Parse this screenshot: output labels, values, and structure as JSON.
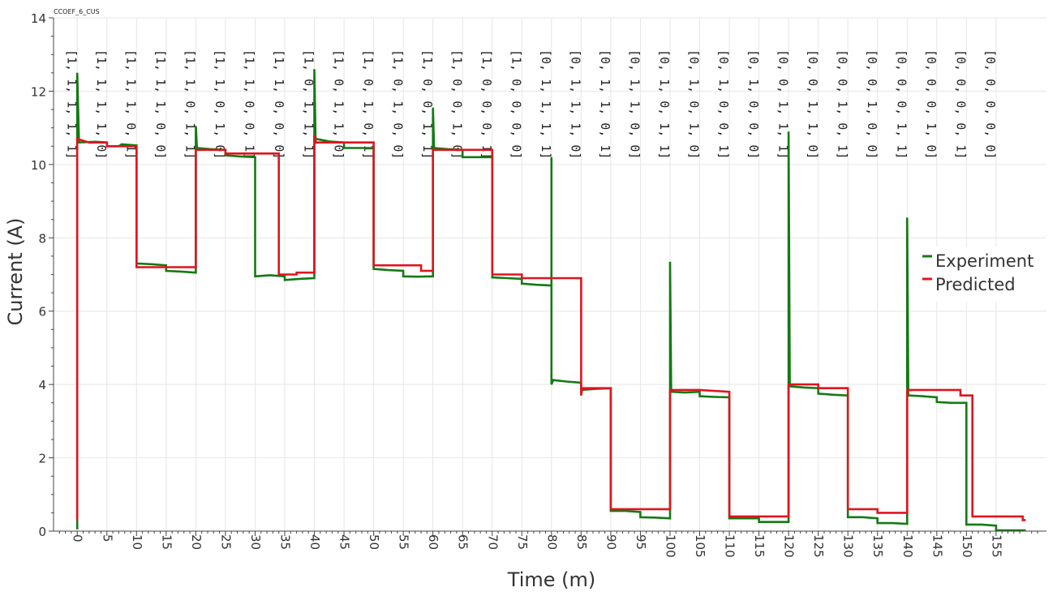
{
  "chart_data": {
    "type": "line",
    "title": "CCOEF_6_CUS",
    "xlabel": "Time (m)",
    "ylabel": "Current (A)",
    "xlim": [
      -4,
      163.5
    ],
    "ylim": [
      0,
      14
    ],
    "x_ticks": [
      0,
      5,
      10,
      15,
      20,
      25,
      30,
      35,
      40,
      45,
      50,
      55,
      60,
      65,
      70,
      75,
      80,
      85,
      90,
      95,
      100,
      105,
      110,
      115,
      120,
      125,
      130,
      135,
      140,
      145,
      150,
      155
    ],
    "x_tick_labels": [
      "0",
      "5",
      "10",
      "15",
      "20",
      "25",
      "30",
      "35",
      "40",
      "45",
      "50",
      "55",
      "60",
      "65",
      "70",
      "75",
      "80",
      "85",
      "90",
      "95",
      "100",
      "105",
      "110",
      "115",
      "120",
      "125",
      "130",
      "135",
      "140",
      "145",
      "150",
      "155"
    ],
    "y_ticks": [
      0,
      2,
      4,
      6,
      8,
      10,
      12,
      14
    ],
    "y_tick_labels": [
      "0",
      "2",
      "4",
      "6",
      "8",
      "10",
      "12",
      "14"
    ],
    "grid": true,
    "legend_position": "right",
    "state_labels": [
      {
        "x": -1,
        "text": "[1, 1, 1, 1, 1]"
      },
      {
        "x": 4,
        "text": "[1, 1, 1, 1, 0]"
      },
      {
        "x": 9,
        "text": "[1, 1, 1, 0, 1]"
      },
      {
        "x": 14,
        "text": "[1, 1, 1, 0, 0]"
      },
      {
        "x": 19,
        "text": "[1, 1, 0, 1, 1]"
      },
      {
        "x": 24,
        "text": "[1, 1, 0, 1, 0]"
      },
      {
        "x": 29,
        "text": "[1, 1, 0, 0, 1]"
      },
      {
        "x": 34,
        "text": "[1, 1, 0, 0, 0]"
      },
      {
        "x": 39,
        "text": "[1, 0, 1, 1, 1]"
      },
      {
        "x": 44,
        "text": "[1, 0, 1, 1, 0]"
      },
      {
        "x": 49,
        "text": "[1, 0, 1, 0, 1]"
      },
      {
        "x": 54,
        "text": "[1, 0, 1, 0, 0]"
      },
      {
        "x": 59,
        "text": "[1, 0, 0, 1, 1]"
      },
      {
        "x": 64,
        "text": "[1, 0, 0, 1, 0]"
      },
      {
        "x": 69,
        "text": "[1, 0, 0, 0, 1]"
      },
      {
        "x": 74,
        "text": "[1, 0, 0, 0, 0]"
      },
      {
        "x": 79,
        "text": "[0, 1, 1, 1, 1]"
      },
      {
        "x": 84,
        "text": "[0, 1, 1, 1, 0]"
      },
      {
        "x": 89,
        "text": "[0, 1, 1, 0, 1]"
      },
      {
        "x": 94,
        "text": "[0, 1, 1, 0, 0]"
      },
      {
        "x": 99,
        "text": "[0, 1, 0, 1, 1]"
      },
      {
        "x": 104,
        "text": "[0, 1, 0, 1, 0]"
      },
      {
        "x": 109,
        "text": "[0, 1, 0, 0, 1]"
      },
      {
        "x": 114,
        "text": "[0, 1, 0, 0, 0]"
      },
      {
        "x": 119,
        "text": "[0, 0, 1, 1, 1]"
      },
      {
        "x": 124,
        "text": "[0, 0, 1, 1, 0]"
      },
      {
        "x": 129,
        "text": "[0, 0, 1, 0, 1]"
      },
      {
        "x": 134,
        "text": "[0, 0, 1, 0, 0]"
      },
      {
        "x": 139,
        "text": "[0, 0, 0, 1, 1]"
      },
      {
        "x": 144,
        "text": "[0, 0, 0, 1, 0]"
      },
      {
        "x": 149,
        "text": "[0, 0, 0, 0, 1]"
      },
      {
        "x": 154,
        "text": "[0, 0, 0, 0, 0]"
      }
    ],
    "series": [
      {
        "name": "Experiment",
        "color": "#137a13",
        "points": [
          [
            0,
            0.05
          ],
          [
            0,
            12.5
          ],
          [
            0.3,
            10.6
          ],
          [
            3,
            10.62
          ],
          [
            5,
            10.6
          ],
          [
            5,
            10.5
          ],
          [
            7,
            10.5
          ],
          [
            7.5,
            10.55
          ],
          [
            10,
            10.52
          ],
          [
            10,
            7.3
          ],
          [
            12.5,
            7.28
          ],
          [
            15,
            7.25
          ],
          [
            15,
            7.1
          ],
          [
            17.5,
            7.08
          ],
          [
            20,
            7.05
          ],
          [
            20,
            11.05
          ],
          [
            20.2,
            10.45
          ],
          [
            22.5,
            10.42
          ],
          [
            25,
            10.4
          ],
          [
            25,
            10.25
          ],
          [
            27.5,
            10.22
          ],
          [
            30,
            10.2
          ],
          [
            30,
            6.95
          ],
          [
            32.5,
            6.98
          ],
          [
            35,
            6.95
          ],
          [
            35,
            6.85
          ],
          [
            37.5,
            6.88
          ],
          [
            40,
            6.9
          ],
          [
            40,
            12.6
          ],
          [
            40.2,
            10.7
          ],
          [
            42.5,
            10.63
          ],
          [
            45,
            10.6
          ],
          [
            45,
            10.45
          ],
          [
            47.5,
            10.45
          ],
          [
            50,
            10.45
          ],
          [
            50,
            7.15
          ],
          [
            52.5,
            7.12
          ],
          [
            55,
            7.1
          ],
          [
            55,
            6.95
          ],
          [
            57.5,
            6.94
          ],
          [
            60,
            6.95
          ],
          [
            60,
            11.55
          ],
          [
            60.2,
            10.45
          ],
          [
            62.5,
            10.42
          ],
          [
            65,
            10.4
          ],
          [
            65,
            10.2
          ],
          [
            67.5,
            10.2
          ],
          [
            70,
            10.2
          ],
          [
            70,
            6.92
          ],
          [
            72.5,
            6.9
          ],
          [
            75,
            6.88
          ],
          [
            75,
            6.75
          ],
          [
            77.5,
            6.72
          ],
          [
            80,
            6.7
          ],
          [
            80,
            10.2
          ],
          [
            80,
            4.0
          ],
          [
            80.3,
            4.12
          ],
          [
            82.5,
            4.08
          ],
          [
            85,
            4.05
          ],
          [
            85,
            3.85
          ],
          [
            87.5,
            3.88
          ],
          [
            90,
            3.9
          ],
          [
            90,
            0.55
          ],
          [
            92.5,
            0.55
          ],
          [
            95,
            0.52
          ],
          [
            95,
            0.38
          ],
          [
            97.5,
            0.37
          ],
          [
            100,
            0.35
          ],
          [
            100,
            7.35
          ],
          [
            100.2,
            3.8
          ],
          [
            102.5,
            3.78
          ],
          [
            105,
            3.8
          ],
          [
            105,
            3.68
          ],
          [
            107.5,
            3.66
          ],
          [
            110,
            3.65
          ],
          [
            110,
            0.35
          ],
          [
            112.5,
            0.35
          ],
          [
            115,
            0.35
          ],
          [
            115,
            0.25
          ],
          [
            117.5,
            0.25
          ],
          [
            120,
            0.25
          ],
          [
            120,
            10.9
          ],
          [
            120.2,
            3.95
          ],
          [
            122.5,
            3.92
          ],
          [
            125,
            3.9
          ],
          [
            125,
            3.75
          ],
          [
            127.5,
            3.72
          ],
          [
            130,
            3.7
          ],
          [
            130,
            0.38
          ],
          [
            132.5,
            0.38
          ],
          [
            135,
            0.35
          ],
          [
            135,
            0.22
          ],
          [
            137.5,
            0.22
          ],
          [
            140,
            0.2
          ],
          [
            140,
            8.55
          ],
          [
            140.2,
            3.7
          ],
          [
            142.5,
            3.68
          ],
          [
            145,
            3.65
          ],
          [
            145,
            3.52
          ],
          [
            147.5,
            3.5
          ],
          [
            150,
            3.5
          ],
          [
            150,
            0.18
          ],
          [
            152.5,
            0.18
          ],
          [
            155,
            0.15
          ],
          [
            155,
            0.02
          ],
          [
            157.5,
            0.02
          ],
          [
            160,
            0.02
          ]
        ]
      },
      {
        "name": "Predicted",
        "color": "#e0141e",
        "points": [
          [
            0,
            0.3
          ],
          [
            0,
            10.7
          ],
          [
            2,
            10.6
          ],
          [
            5,
            10.6
          ],
          [
            5,
            10.5
          ],
          [
            10,
            10.5
          ],
          [
            10,
            7.2
          ],
          [
            15,
            7.2
          ],
          [
            20,
            7.2
          ],
          [
            20,
            10.4
          ],
          [
            25,
            10.4
          ],
          [
            25,
            10.3
          ],
          [
            30,
            10.3
          ],
          [
            34,
            10.3
          ],
          [
            34,
            7.0
          ],
          [
            37,
            7.0
          ],
          [
            37,
            7.05
          ],
          [
            40,
            7.05
          ],
          [
            40,
            10.8
          ],
          [
            40.3,
            10.6
          ],
          [
            45,
            10.6
          ],
          [
            50,
            10.6
          ],
          [
            50,
            7.25
          ],
          [
            55,
            7.25
          ],
          [
            58,
            7.25
          ],
          [
            58,
            7.1
          ],
          [
            60,
            7.1
          ],
          [
            60,
            10.4
          ],
          [
            65,
            10.4
          ],
          [
            70,
            10.4
          ],
          [
            70,
            7.0
          ],
          [
            75,
            7.0
          ],
          [
            75,
            6.9
          ],
          [
            80,
            6.9
          ],
          [
            85,
            6.9
          ],
          [
            85,
            3.7
          ],
          [
            85.2,
            3.9
          ],
          [
            90,
            3.9
          ],
          [
            90,
            0.6
          ],
          [
            95,
            0.6
          ],
          [
            100,
            0.6
          ],
          [
            100,
            3.85
          ],
          [
            105,
            3.85
          ],
          [
            110,
            3.8
          ],
          [
            110,
            0.4
          ],
          [
            115,
            0.4
          ],
          [
            120,
            0.4
          ],
          [
            120,
            4.0
          ],
          [
            125,
            4.0
          ],
          [
            125,
            3.9
          ],
          [
            130,
            3.9
          ],
          [
            130,
            0.6
          ],
          [
            135,
            0.6
          ],
          [
            135,
            0.5
          ],
          [
            140,
            0.5
          ],
          [
            140,
            3.85
          ],
          [
            145,
            3.85
          ],
          [
            149,
            3.85
          ],
          [
            149,
            3.7
          ],
          [
            151,
            3.7
          ],
          [
            151,
            0.4
          ],
          [
            155,
            0.4
          ],
          [
            159.5,
            0.4
          ],
          [
            159.5,
            0.3
          ],
          [
            160,
            0.3
          ]
        ]
      }
    ]
  }
}
